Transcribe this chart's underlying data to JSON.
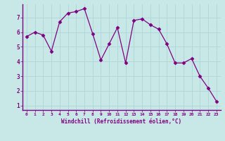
{
  "x": [
    0,
    1,
    2,
    3,
    4,
    5,
    6,
    7,
    8,
    9,
    10,
    11,
    12,
    13,
    14,
    15,
    16,
    17,
    18,
    19,
    20,
    21,
    22,
    23
  ],
  "y": [
    5.7,
    6.0,
    5.8,
    4.7,
    6.7,
    7.3,
    7.4,
    7.6,
    5.9,
    4.1,
    5.2,
    6.3,
    3.9,
    6.8,
    6.9,
    6.5,
    6.2,
    5.2,
    3.9,
    3.9,
    4.2,
    3.0,
    2.2,
    1.3
  ],
  "line_color": "#800080",
  "marker": "D",
  "marker_size": 2.5,
  "bg_color": "#c8e8e8",
  "grid_color": "#b0d8d8",
  "xlabel": "Windchill (Refroidissement éolien,°C)",
  "xlabel_color": "#800080",
  "tick_color": "#800080",
  "spine_color": "#800080",
  "ylim": [
    0.7,
    7.9
  ],
  "xlim": [
    -0.5,
    23.5
  ],
  "yticks": [
    1,
    2,
    3,
    4,
    5,
    6,
    7
  ],
  "xticks": [
    0,
    1,
    2,
    3,
    4,
    5,
    6,
    7,
    8,
    9,
    10,
    11,
    12,
    13,
    14,
    15,
    16,
    17,
    18,
    19,
    20,
    21,
    22,
    23
  ]
}
